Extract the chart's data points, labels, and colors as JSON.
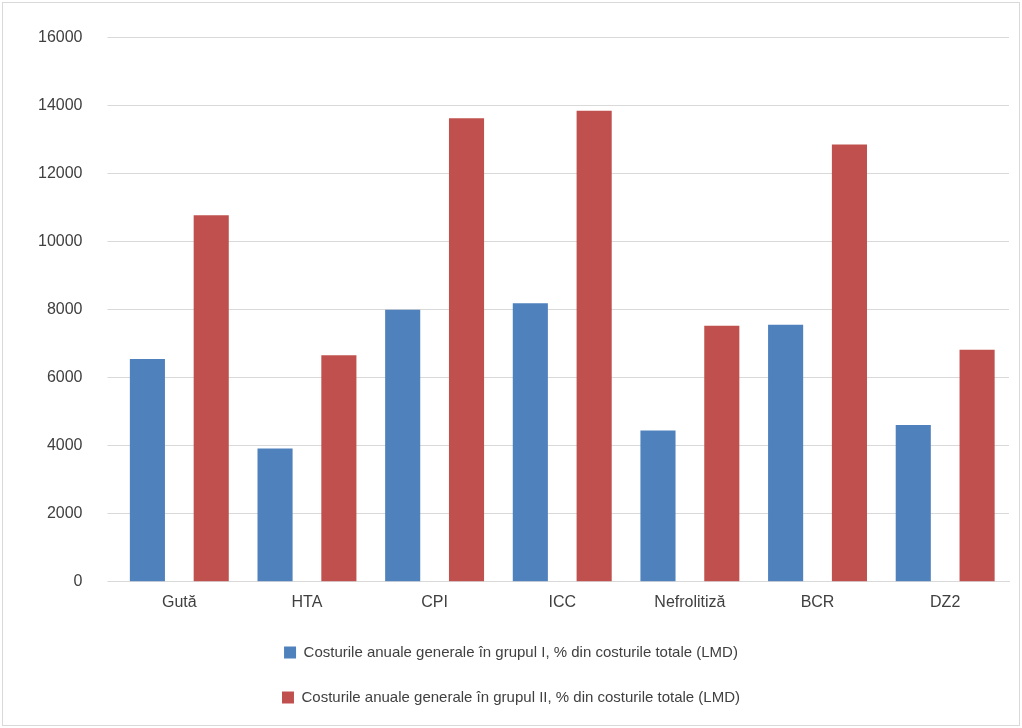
{
  "chart_data": {
    "type": "bar",
    "categories": [
      "Gută",
      "HTA",
      "CPI",
      "ICC",
      "Nefrolitiză",
      "BCR",
      "DZ2"
    ],
    "series": [
      {
        "name": "Costurile anuale generale în grupul I, % din costurile totale (LMD)",
        "color": "#4f81bd",
        "values": [
          6550,
          3920,
          8000,
          8190,
          4450,
          7560,
          4610
        ]
      },
      {
        "name": "Costurile anuale generale în grupul II, % din costurile totale (LMD)",
        "color": "#c0504d",
        "values": [
          10780,
          6660,
          13630,
          13850,
          7530,
          12860,
          6820
        ]
      }
    ],
    "ylim": [
      0,
      16000
    ],
    "yticks": [
      0,
      2000,
      4000,
      6000,
      8000,
      10000,
      12000,
      14000,
      16000
    ],
    "grid": "y",
    "legend": "bottom"
  }
}
